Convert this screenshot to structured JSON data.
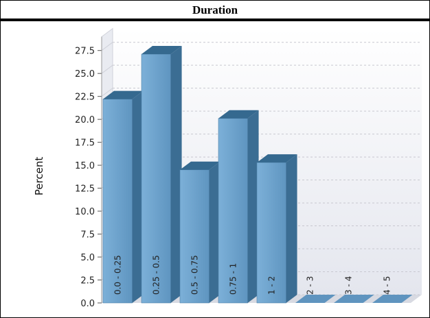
{
  "title": "Duration",
  "chart_data": {
    "type": "bar",
    "title": "Duration",
    "xlabel": "",
    "ylabel": "Percent",
    "ylim": [
      0,
      29
    ],
    "yticks": [
      "0.0",
      "2.5",
      "5.0",
      "7.5",
      "10.0",
      "12.5",
      "15.0",
      "17.5",
      "20.0",
      "22.5",
      "25.0",
      "27.5"
    ],
    "categories": [
      "0.0 - 0.25",
      "0.25 - 0.5",
      "0.5 - 0.75",
      "0.75 - 1",
      "1 - 2",
      "2 - 3",
      "3 - 4",
      "4 - 5"
    ],
    "values": [
      22.2,
      27.1,
      14.5,
      20.1,
      15.3,
      0,
      0,
      0
    ],
    "grid": true,
    "bar_style": "3d",
    "colors": {
      "bar_front": "#6a9fc9",
      "bar_side": "#3b6d93",
      "bar_top": "#35698f",
      "wall": "#eef0f4",
      "grid": "#c8c8d0"
    }
  }
}
